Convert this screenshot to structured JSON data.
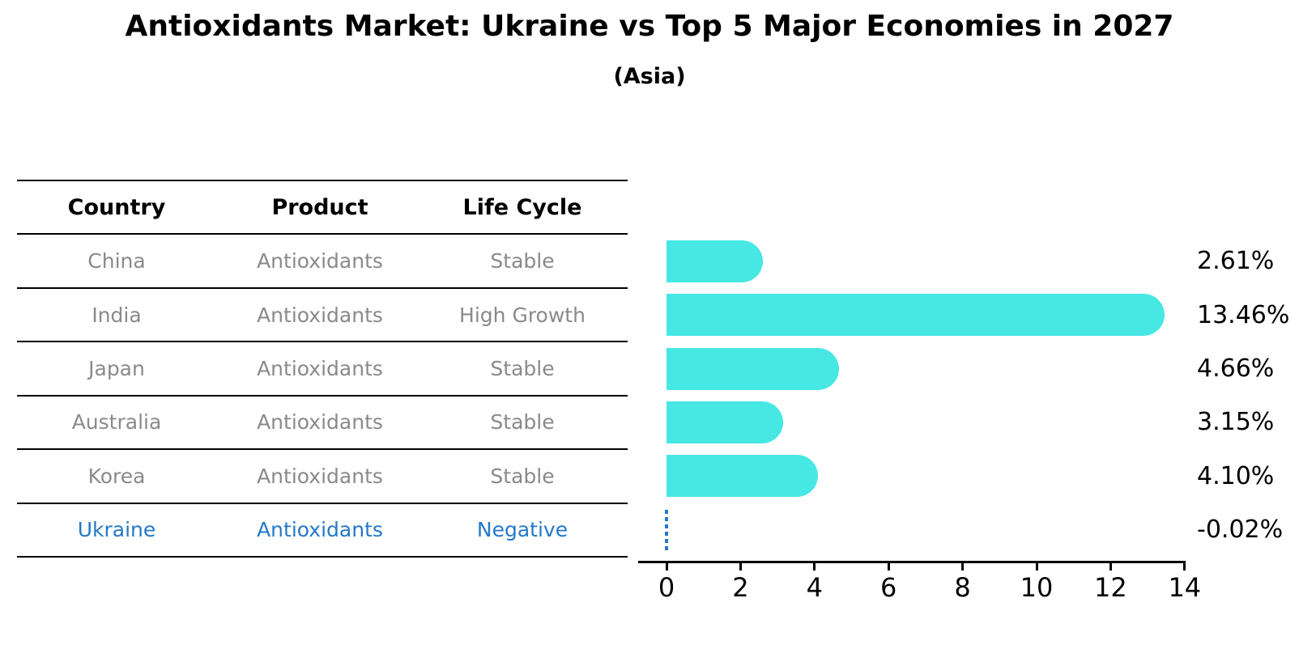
{
  "figure": {
    "title": "Antioxidants Market: Ukraine vs Top 5 Major Economies in 2027",
    "subtitle": "(Asia)"
  },
  "table": {
    "headers": [
      "Country",
      "Product",
      "Life Cycle"
    ],
    "rows": [
      {
        "country": "China",
        "product": "Antioxidants",
        "life_cycle": "Stable",
        "highlight": false
      },
      {
        "country": "India",
        "product": "Antioxidants",
        "life_cycle": "High Growth",
        "highlight": false
      },
      {
        "country": "Japan",
        "product": "Antioxidants",
        "life_cycle": "Stable",
        "highlight": false
      },
      {
        "country": "Australia",
        "product": "Antioxidants",
        "life_cycle": "Stable",
        "highlight": false
      },
      {
        "country": "Korea",
        "product": "Antioxidants",
        "life_cycle": "Stable",
        "highlight": false
      },
      {
        "country": "Ukraine",
        "product": "Antioxidants",
        "life_cycle": "Negative",
        "highlight": true
      }
    ]
  },
  "chart_data": {
    "type": "bar",
    "orientation": "horizontal",
    "title": "Antioxidants Market: Ukraine vs Top 5 Major Economies in 2027",
    "subtitle": "(Asia)",
    "categories": [
      "China",
      "India",
      "Japan",
      "Australia",
      "Korea",
      "Ukraine"
    ],
    "values": [
      2.61,
      13.46,
      4.66,
      3.15,
      4.1,
      -0.02
    ],
    "value_labels": [
      "2.61%",
      "13.46%",
      "4.66%",
      "3.15%",
      "4.10%",
      "-0.02%"
    ],
    "x_ticks": [
      0,
      2,
      4,
      6,
      8,
      10,
      12,
      14
    ],
    "xlim": [
      -0.8,
      14.05
    ],
    "xlabel": "",
    "ylabel": "",
    "grid": false,
    "legend": false,
    "bar_color": "#47E8E4",
    "highlight_color": "#2478C8",
    "text_color": "#000000",
    "muted_text_color": "#8A8A8A",
    "highlight_category": "Ukraine",
    "highlight_style": "dashed-line-at-zero"
  }
}
